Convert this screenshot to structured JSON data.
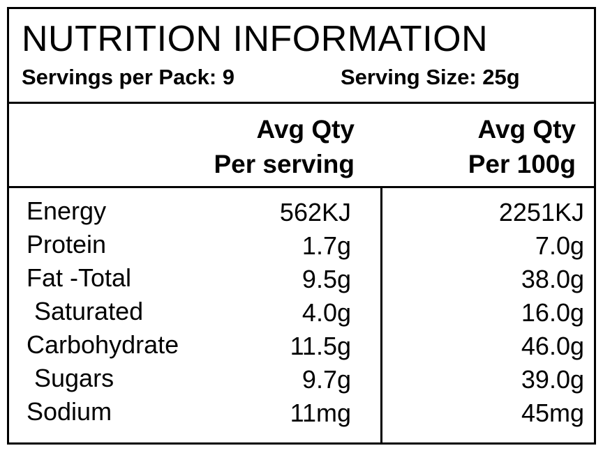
{
  "panel": {
    "title": "NUTRITION INFORMATION",
    "servings_per_pack": "Servings per Pack: 9",
    "serving_size": "Serving Size: 25g"
  },
  "columns": {
    "per_serving": [
      "Avg Qty",
      "Per serving"
    ],
    "per_100g": [
      "Avg Qty",
      "Per 100g"
    ]
  },
  "rows": [
    {
      "name": "Energy",
      "per_serving": "562KJ",
      "per_100g": "2251KJ"
    },
    {
      "name": "Protein",
      "per_serving": "1.7g",
      "per_100g": "7.0g"
    },
    {
      "name": "Fat -Total",
      "per_serving": "9.5g",
      "per_100g": "38.0g"
    },
    {
      "name": "Saturated",
      "per_serving": "4.0g",
      "per_100g": "16.0g"
    },
    {
      "name": "Carbohydrate",
      "per_serving": "11.5g",
      "per_100g": "46.0g"
    },
    {
      "name": "Sugars",
      "per_serving": "9.7g",
      "per_100g": "39.0g"
    },
    {
      "name": "Sodium",
      "per_serving": "11mg",
      "per_100g": "45mg"
    }
  ]
}
